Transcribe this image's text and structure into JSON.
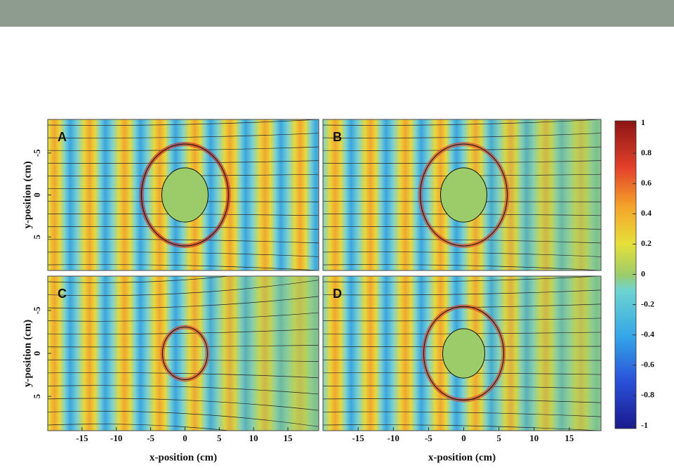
{
  "figure": {
    "panels": [
      "A",
      "B",
      "C",
      "D"
    ],
    "x_label": "x-position (cm)",
    "y_label": "y-position (cm)",
    "xlim": [
      -20,
      19.5
    ],
    "xticks": [
      -15,
      -10,
      -5,
      0,
      5,
      10,
      15
    ],
    "ylim": [
      -9,
      9
    ],
    "yticks": [
      -5,
      0,
      5
    ],
    "colorbar": {
      "lim": [
        -1,
        1
      ],
      "ticks": [
        1,
        0.8,
        0.6,
        0.4,
        0.2,
        0,
        -0.2,
        -0.4,
        -0.6,
        -0.8,
        -1
      ]
    }
  }
}
